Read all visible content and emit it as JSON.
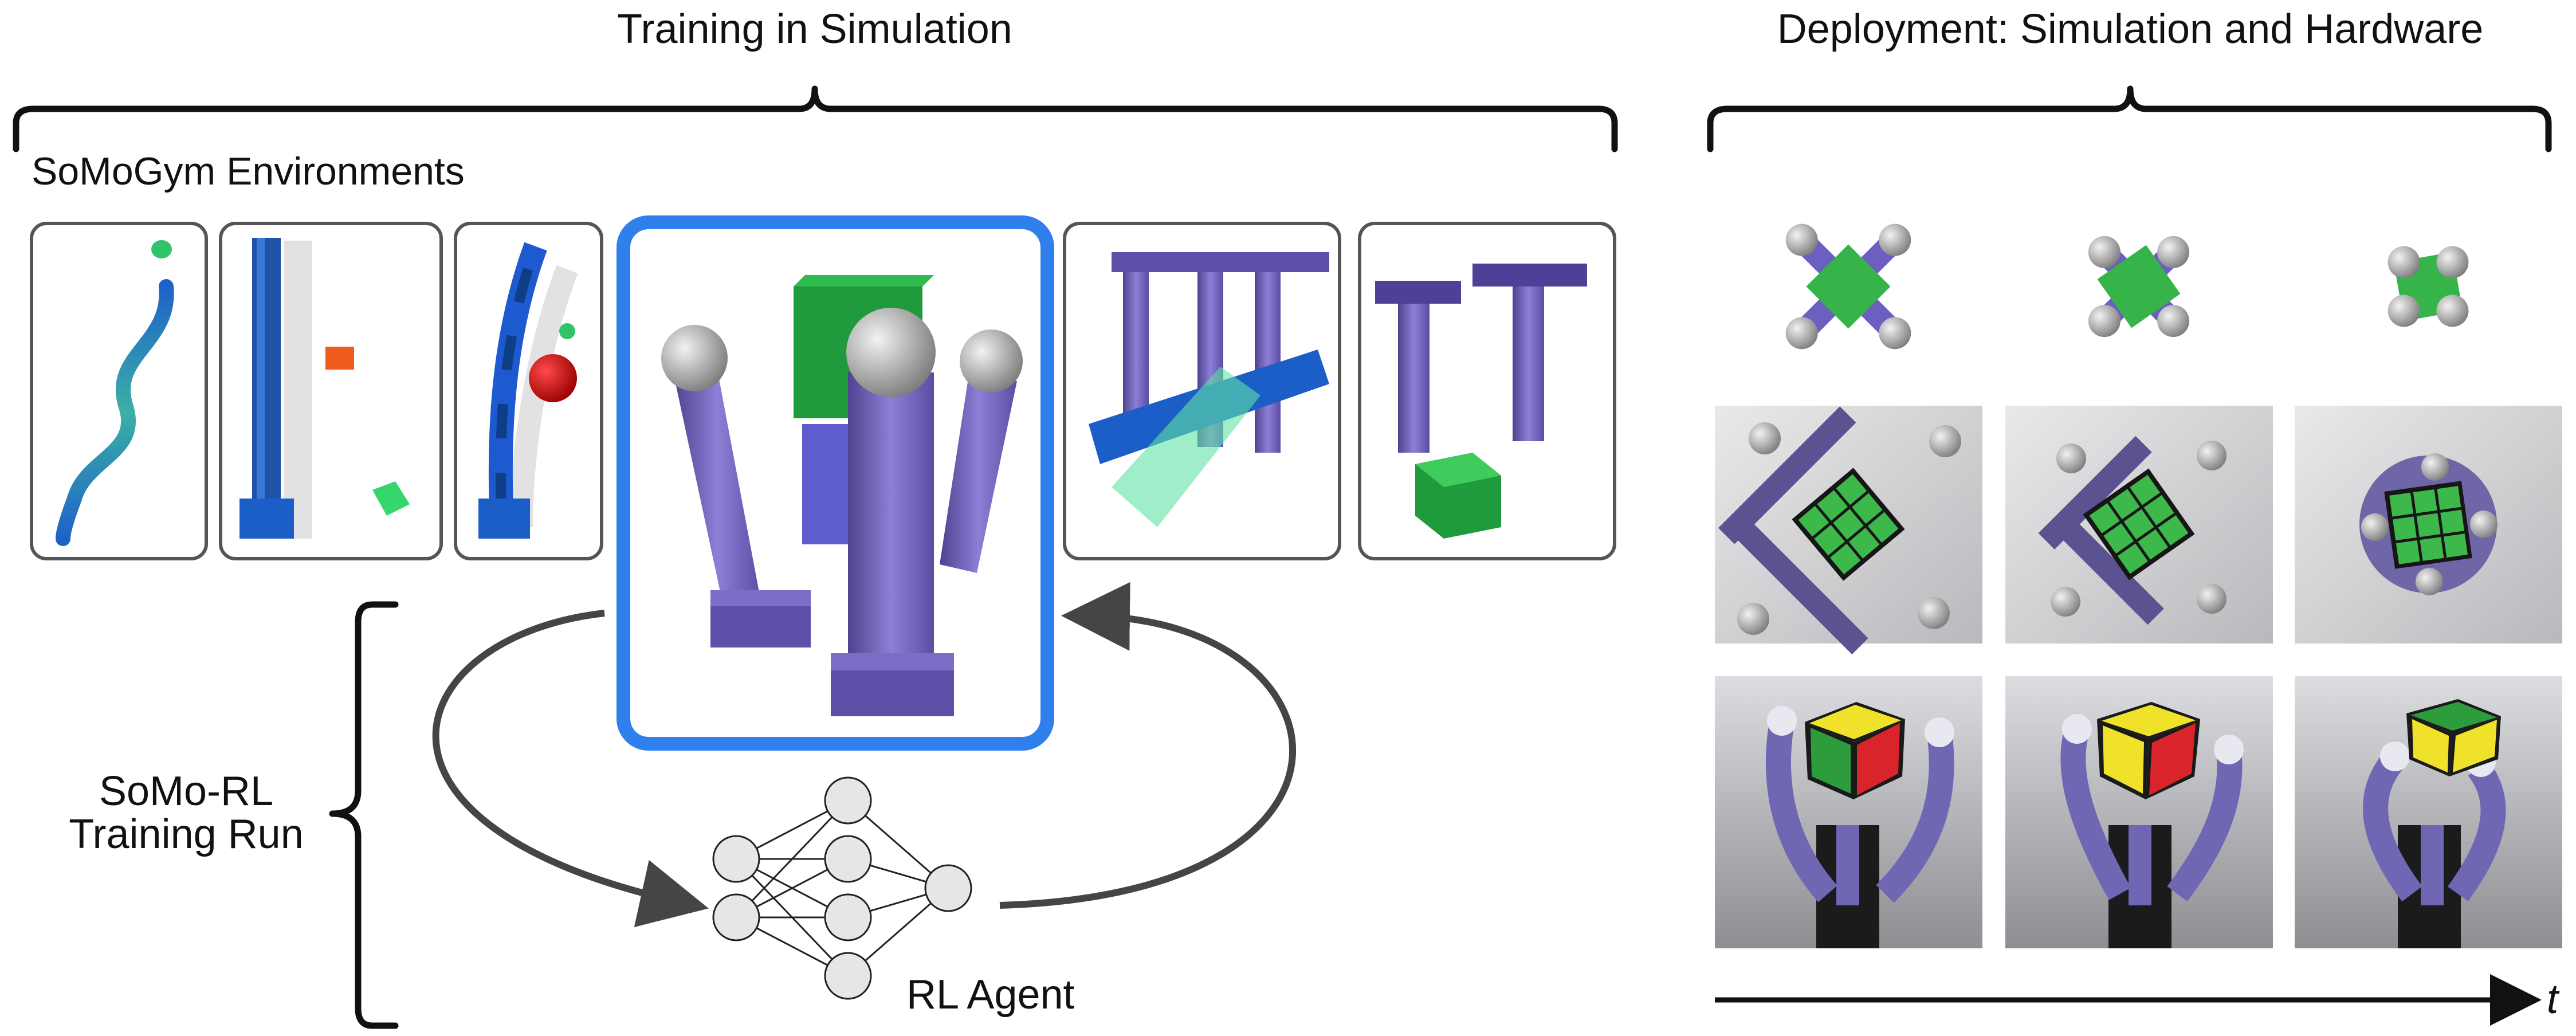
{
  "header": {
    "left_title": "Training in Simulation",
    "right_title": "Deployment: Simulation and Hardware"
  },
  "environments": {
    "section_label": "SoMoGym Environments",
    "panels": [
      {
        "name": "snake-reach-env"
      },
      {
        "name": "planar-block-push-env"
      },
      {
        "name": "reach-obstacle-env"
      },
      {
        "name": "in-hand-manipulation-env",
        "highlighted": true
      },
      {
        "name": "antipodal-grip-env"
      },
      {
        "name": "box-lift-env"
      }
    ]
  },
  "training": {
    "run_label_line1": "SoMo-RL",
    "run_label_line2": "Training Run",
    "agent_label": "RL Agent",
    "network_layers": [
      2,
      4,
      1
    ]
  },
  "deployment": {
    "rows": [
      "simulation",
      "hardware-top-view",
      "hardware-side-view"
    ],
    "columns": 3,
    "time_axis_label": "t"
  },
  "colors": {
    "highlight": "#2f80ed",
    "finger_purple": "#7a6bc4",
    "finger_purple_dark": "#4b3f8f",
    "cube_green": "#2db24a",
    "snake_teal": "#3aa7a0",
    "arrow_gray": "#454545",
    "panel_border": "#555555"
  }
}
